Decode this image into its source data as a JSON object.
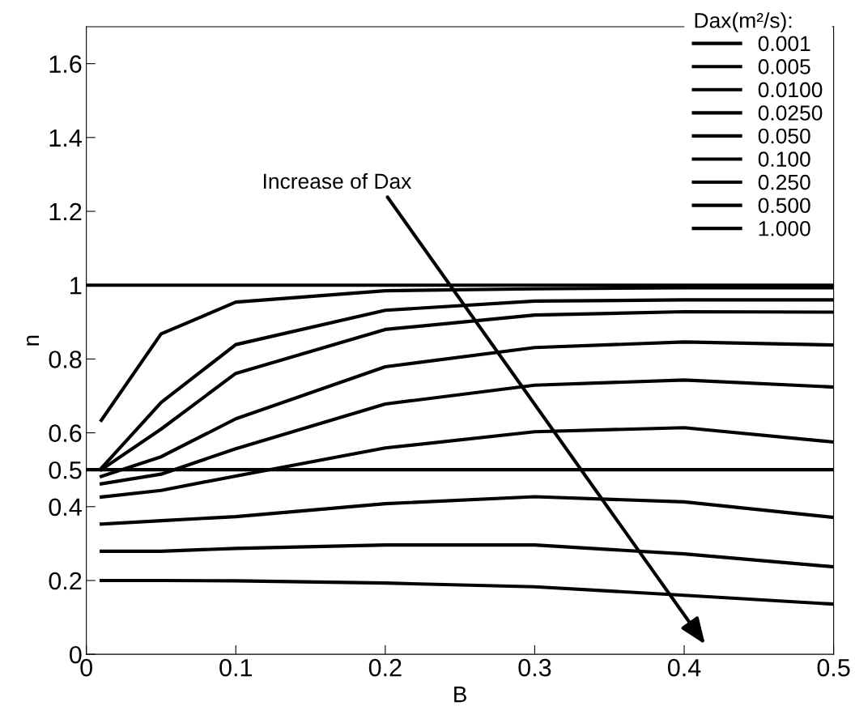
{
  "chart_data": {
    "type": "line",
    "xlabel": "B",
    "ylabel": "n",
    "legend_title": "Dax(m²/s):",
    "x": [
      0.01,
      0.05,
      0.1,
      0.2,
      0.3,
      0.4,
      0.5
    ],
    "series": [
      {
        "name": "0.001",
        "color": "#000000",
        "values": [
          0.634,
          0.868,
          0.954,
          0.985,
          0.99,
          0.993,
          0.993
        ]
      },
      {
        "name": "0.005",
        "color": "#000000",
        "values": [
          0.504,
          0.682,
          0.839,
          0.932,
          0.957,
          0.96,
          0.96
        ]
      },
      {
        "name": "0.0100",
        "color": "#000000",
        "values": [
          0.5,
          0.61,
          0.761,
          0.88,
          0.919,
          0.928,
          0.927
        ]
      },
      {
        "name": "0.0250",
        "color": "#000000",
        "values": [
          0.482,
          0.535,
          0.638,
          0.779,
          0.831,
          0.846,
          0.838
        ]
      },
      {
        "name": "0.050",
        "color": "#000000",
        "values": [
          0.462,
          0.488,
          0.557,
          0.678,
          0.729,
          0.743,
          0.724
        ]
      },
      {
        "name": "0.100",
        "color": "#000000",
        "values": [
          0.426,
          0.444,
          0.483,
          0.559,
          0.603,
          0.614,
          0.575
        ]
      },
      {
        "name": "0.250",
        "color": "#000000",
        "values": [
          0.353,
          0.362,
          0.373,
          0.408,
          0.427,
          0.413,
          0.371
        ]
      },
      {
        "name": "0.500",
        "color": "#000000",
        "values": [
          0.279,
          0.279,
          0.287,
          0.296,
          0.296,
          0.272,
          0.237
        ]
      },
      {
        "name": "1.000",
        "color": "#000000",
        "values": [
          0.2,
          0.2,
          0.199,
          0.193,
          0.183,
          0.16,
          0.136
        ]
      }
    ],
    "ref_lines": [
      {
        "axis": "y",
        "value": 1,
        "color": "#000000"
      },
      {
        "axis": "y",
        "value": 0.5,
        "color": "#000000"
      }
    ],
    "annotations": [
      "Increase of Dax"
    ],
    "xlim": [
      0,
      0.5
    ],
    "ylim": [
      0,
      1.7
    ],
    "xticks": [
      0,
      0.1,
      0.2,
      0.3,
      0.4,
      0.5
    ],
    "yticks": [
      0,
      0.2,
      0.4,
      0.5,
      0.6,
      0.8,
      1,
      1.2,
      1.4,
      1.6
    ],
    "legend": "top right",
    "marker": "none",
    "line_style": "solid"
  }
}
